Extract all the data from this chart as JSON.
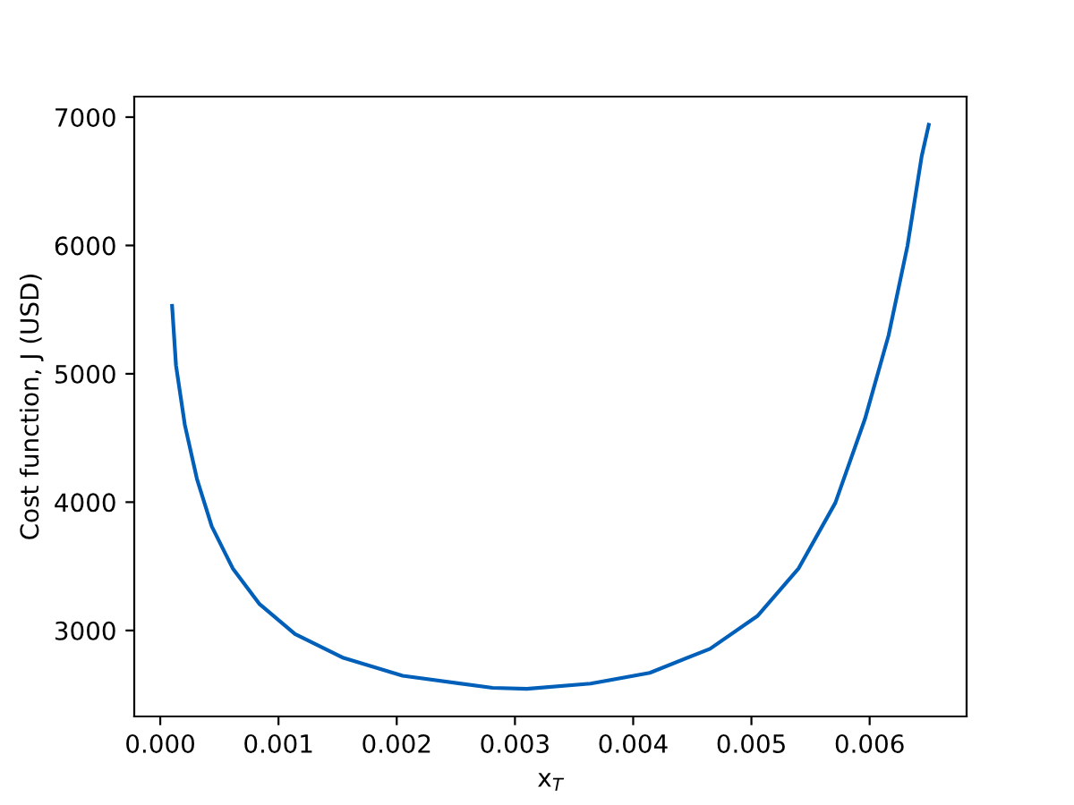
{
  "chart_data": {
    "type": "line",
    "xlabel": "x$_{T}$",
    "ylabel": "Cost function, J (USD)",
    "series": [
      {
        "color": "#005fb8",
        "x": [
          0.0001,
          0.000133,
          0.000208,
          0.00031,
          0.000436,
          0.000613,
          0.00084,
          0.00114,
          0.00155,
          0.00205,
          0.00281,
          0.0031,
          0.00364,
          0.00414,
          0.00465,
          0.00505,
          0.0054,
          0.00571,
          0.00596,
          0.00616,
          0.00632,
          0.00644,
          0.0065
        ],
        "values": [
          5530,
          5066,
          4601,
          4182,
          3810,
          3484,
          3205,
          2972,
          2786,
          2647,
          2553,
          2545,
          2586,
          2670,
          2857,
          3112,
          3485,
          3995,
          4647,
          5299,
          5997,
          6695,
          6940
        ]
      }
    ],
    "xlim": [
      -0.00022,
      0.00682
    ],
    "ylim": [
      2330,
      7160
    ],
    "xticks": [
      {
        "value": 0,
        "label": "0.000"
      },
      {
        "value": 0.001,
        "label": "0.001"
      },
      {
        "value": 0.002,
        "label": "0.002"
      },
      {
        "value": 0.003,
        "label": "0.003"
      },
      {
        "value": 0.004,
        "label": "0.004"
      },
      {
        "value": 0.005,
        "label": "0.005"
      },
      {
        "value": 0.006,
        "label": "0.006"
      }
    ],
    "yticks": [
      3000,
      4000,
      5000,
      6000,
      7000
    ],
    "grid": false,
    "legend": false,
    "marker": "none",
    "line_style": "solid"
  }
}
